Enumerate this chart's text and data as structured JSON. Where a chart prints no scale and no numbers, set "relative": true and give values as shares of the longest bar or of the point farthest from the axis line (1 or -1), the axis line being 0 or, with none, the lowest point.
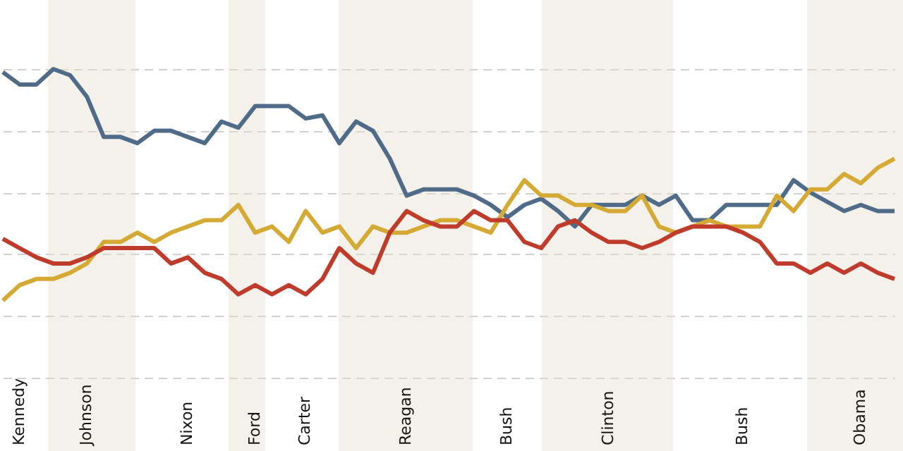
{
  "chart_data": {
    "type": "line",
    "relative": true,
    "grid": "y",
    "line_style": "solid",
    "categories": [
      null,
      "Kennedy",
      null,
      null,
      null,
      "Johnson",
      null,
      null,
      null,
      null,
      null,
      "Nixon",
      null,
      null,
      null,
      "Ford",
      null,
      null,
      "Carter",
      null,
      null,
      null,
      null,
      null,
      "Reagan",
      null,
      null,
      null,
      null,
      null,
      "Bush",
      null,
      null,
      null,
      null,
      null,
      "Clinton",
      null,
      null,
      null,
      null,
      null,
      null,
      null,
      "Bush",
      null,
      null,
      null,
      null,
      null,
      null,
      "Obama",
      null,
      null
    ],
    "series": [
      {
        "color": "#4f6b87",
        "values": [
          0.99,
          0.95,
          0.95,
          1,
          0.98,
          0.91,
          0.78,
          0.78,
          0.76,
          0.8,
          0.8,
          0.78,
          0.76,
          0.83,
          0.81,
          0.88,
          0.88,
          0.88,
          0.84,
          0.85,
          0.76,
          0.83,
          0.8,
          0.71,
          0.59,
          0.61,
          0.61,
          0.61,
          0.59,
          0.56,
          0.52,
          0.56,
          0.58,
          0.54,
          0.49,
          0.56,
          0.56,
          0.56,
          0.59,
          0.56,
          0.59,
          0.51,
          0.51,
          0.56,
          0.56,
          0.56,
          0.56,
          0.64,
          0.6,
          0.57,
          0.54,
          0.56,
          0.54,
          0.54
        ]
      },
      {
        "color": "#d4a934",
        "values": [
          0.25,
          0.3,
          0.32,
          0.32,
          0.34,
          0.37,
          0.44,
          0.44,
          0.47,
          0.44,
          0.47,
          0.49,
          0.51,
          0.51,
          0.56,
          0.47,
          0.49,
          0.44,
          0.54,
          0.47,
          0.49,
          0.42,
          0.49,
          0.47,
          0.47,
          0.49,
          0.51,
          0.51,
          0.49,
          0.47,
          0.56,
          0.64,
          0.59,
          0.59,
          0.56,
          0.56,
          0.54,
          0.54,
          0.59,
          0.49,
          0.47,
          0.49,
          0.51,
          0.49,
          0.49,
          0.49,
          0.59,
          0.54,
          0.61,
          0.61,
          0.66,
          0.63,
          0.68,
          0.71
        ]
      },
      {
        "color": "#bf3b2c",
        "values": [
          0.45,
          0.42,
          0.39,
          0.37,
          0.37,
          0.39,
          0.42,
          0.42,
          0.42,
          0.42,
          0.37,
          0.39,
          0.34,
          0.32,
          0.27,
          0.3,
          0.27,
          0.3,
          0.27,
          0.32,
          0.42,
          0.37,
          0.34,
          0.47,
          0.54,
          0.51,
          0.49,
          0.49,
          0.54,
          0.51,
          0.51,
          0.44,
          0.42,
          0.49,
          0.51,
          0.47,
          0.44,
          0.44,
          0.42,
          0.44,
          0.47,
          0.49,
          0.49,
          0.49,
          0.47,
          0.44,
          0.37,
          0.37,
          0.34,
          0.37,
          0.34,
          0.37,
          0.34,
          0.32
        ]
      }
    ],
    "marker": "none"
  }
}
